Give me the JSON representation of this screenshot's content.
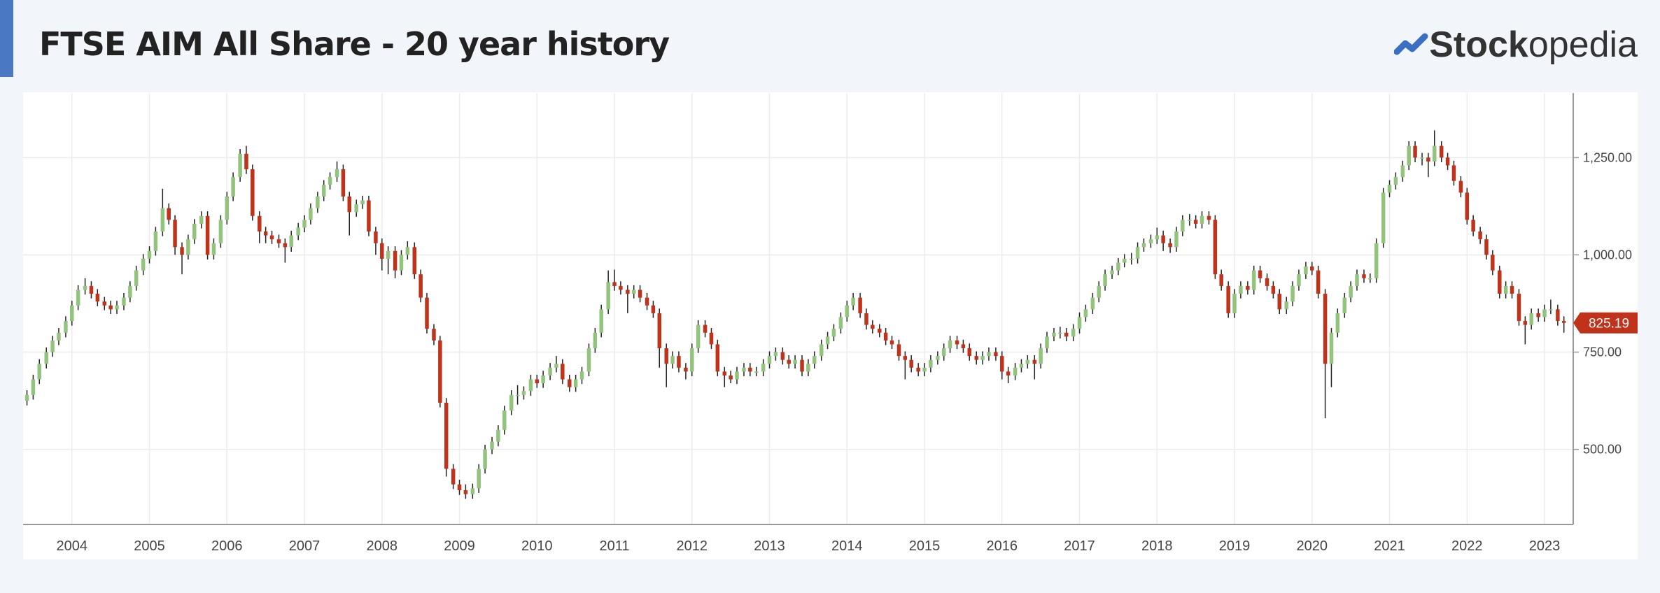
{
  "header": {
    "title": "FTSE AIM All Share - 20 year history",
    "brand_bold": "Stock",
    "brand_light": "opedia"
  },
  "chart_data": {
    "type": "candlestick",
    "up_color": "#93c47d",
    "down_color": "#c0321a",
    "grid": true,
    "xlim": [
      2003.37,
      2023.37
    ],
    "ylim": [
      307,
      1416
    ],
    "xticks": [
      2004,
      2005,
      2006,
      2007,
      2008,
      2009,
      2010,
      2011,
      2012,
      2013,
      2014,
      2015,
      2016,
      2017,
      2018,
      2019,
      2020,
      2021,
      2022,
      2023
    ],
    "yticks": [
      {
        "value": 500,
        "label": "500.00"
      },
      {
        "value": 750,
        "label": "750.00"
      },
      {
        "value": 1000,
        "label": "1,000.00"
      },
      {
        "value": 1250,
        "label": "1,250.00"
      }
    ],
    "x": [
      2003.42,
      2003.5,
      2003.58,
      2003.67,
      2003.75,
      2003.83,
      2003.92,
      2004.0,
      2004.08,
      2004.17,
      2004.25,
      2004.33,
      2004.42,
      2004.5,
      2004.58,
      2004.67,
      2004.75,
      2004.83,
      2004.92,
      2005.0,
      2005.08,
      2005.17,
      2005.25,
      2005.33,
      2005.42,
      2005.5,
      2005.58,
      2005.67,
      2005.75,
      2005.83,
      2005.92,
      2006.0,
      2006.08,
      2006.17,
      2006.25,
      2006.33,
      2006.42,
      2006.5,
      2006.58,
      2006.67,
      2006.75,
      2006.83,
      2006.92,
      2007.0,
      2007.08,
      2007.17,
      2007.25,
      2007.33,
      2007.42,
      2007.5,
      2007.58,
      2007.67,
      2007.75,
      2007.83,
      2007.92,
      2008.0,
      2008.08,
      2008.17,
      2008.25,
      2008.33,
      2008.42,
      2008.5,
      2008.58,
      2008.67,
      2008.75,
      2008.83,
      2008.92,
      2009.0,
      2009.08,
      2009.17,
      2009.25,
      2009.33,
      2009.42,
      2009.5,
      2009.58,
      2009.67,
      2009.75,
      2009.83,
      2009.92,
      2010.0,
      2010.08,
      2010.17,
      2010.25,
      2010.33,
      2010.42,
      2010.5,
      2010.58,
      2010.67,
      2010.75,
      2010.83,
      2010.92,
      2011.0,
      2011.08,
      2011.17,
      2011.25,
      2011.33,
      2011.42,
      2011.5,
      2011.58,
      2011.67,
      2011.75,
      2011.83,
      2011.92,
      2012.0,
      2012.08,
      2012.17,
      2012.25,
      2012.33,
      2012.42,
      2012.5,
      2012.58,
      2012.67,
      2012.75,
      2012.83,
      2012.92,
      2013.0,
      2013.08,
      2013.17,
      2013.25,
      2013.33,
      2013.42,
      2013.5,
      2013.58,
      2013.67,
      2013.75,
      2013.83,
      2013.92,
      2014.0,
      2014.08,
      2014.17,
      2014.25,
      2014.33,
      2014.42,
      2014.5,
      2014.58,
      2014.67,
      2014.75,
      2014.83,
      2014.92,
      2015.0,
      2015.08,
      2015.17,
      2015.25,
      2015.33,
      2015.42,
      2015.5,
      2015.58,
      2015.67,
      2015.75,
      2015.83,
      2015.92,
      2016.0,
      2016.08,
      2016.17,
      2016.25,
      2016.33,
      2016.42,
      2016.5,
      2016.58,
      2016.67,
      2016.75,
      2016.83,
      2016.92,
      2017.0,
      2017.08,
      2017.17,
      2017.25,
      2017.33,
      2017.42,
      2017.5,
      2017.58,
      2017.67,
      2017.75,
      2017.83,
      2017.92,
      2018.0,
      2018.08,
      2018.17,
      2018.25,
      2018.33,
      2018.42,
      2018.5,
      2018.58,
      2018.67,
      2018.75,
      2018.83,
      2018.92,
      2019.0,
      2019.08,
      2019.17,
      2019.25,
      2019.33,
      2019.42,
      2019.5,
      2019.58,
      2019.67,
      2019.75,
      2019.83,
      2019.92,
      2020.0,
      2020.08,
      2020.17,
      2020.25,
      2020.33,
      2020.42,
      2020.5,
      2020.58,
      2020.67,
      2020.75,
      2020.83,
      2020.92,
      2021.0,
      2021.08,
      2021.17,
      2021.25,
      2021.33,
      2021.42,
      2021.5,
      2021.58,
      2021.67,
      2021.75,
      2021.83,
      2021.92,
      2022.0,
      2022.08,
      2022.17,
      2022.25,
      2022.33,
      2022.42,
      2022.5,
      2022.58,
      2022.67,
      2022.75,
      2022.83,
      2022.92,
      2023.0,
      2023.08,
      2023.17,
      2023.25
    ],
    "open": [
      625,
      640,
      680,
      720,
      750,
      780,
      800,
      830,
      870,
      910,
      920,
      900,
      880,
      870,
      860,
      870,
      890,
      920,
      960,
      990,
      1010,
      1060,
      1120,
      1090,
      1020,
      1000,
      1040,
      1080,
      1100,
      1000,
      1030,
      1090,
      1150,
      1200,
      1260,
      1220,
      1100,
      1060,
      1050,
      1040,
      1030,
      1020,
      1050,
      1070,
      1090,
      1120,
      1150,
      1180,
      1200,
      1220,
      1150,
      1110,
      1130,
      1140,
      1060,
      1030,
      990,
      1010,
      960,
      1000,
      1020,
      950,
      890,
      810,
      780,
      620,
      450,
      410,
      395,
      385,
      400,
      450,
      500,
      520,
      550,
      600,
      640,
      640,
      650,
      680,
      670,
      690,
      710,
      720,
      680,
      660,
      680,
      700,
      760,
      800,
      860,
      930,
      920,
      910,
      900,
      910,
      890,
      870,
      850,
      760,
      720,
      740,
      710,
      700,
      760,
      820,
      800,
      770,
      700,
      690,
      680,
      700,
      710,
      700,
      700,
      720,
      740,
      750,
      730,
      720,
      730,
      700,
      720,
      740,
      770,
      790,
      810,
      840,
      870,
      890,
      850,
      820,
      810,
      800,
      780,
      770,
      740,
      730,
      710,
      700,
      710,
      730,
      740,
      760,
      780,
      770,
      760,
      740,
      730,
      740,
      750,
      740,
      700,
      690,
      710,
      720,
      730,
      720,
      760,
      790,
      800,
      800,
      790,
      810,
      840,
      860,
      890,
      920,
      950,
      960,
      980,
      990,
      990,
      1020,
      1030,
      1040,
      1050,
      1030,
      1020,
      1060,
      1090,
      1090,
      1080,
      1100,
      1090,
      950,
      920,
      850,
      900,
      920,
      910,
      960,
      940,
      920,
      900,
      860,
      880,
      920,
      950,
      970,
      960,
      900,
      720,
      800,
      850,
      890,
      920,
      950,
      940,
      940,
      1030,
      1160,
      1180,
      1200,
      1230,
      1280,
      1250,
      1250,
      1240,
      1280,
      1250,
      1230,
      1190,
      1160,
      1090,
      1060,
      1040,
      1000,
      960,
      900,
      920,
      900,
      830,
      820,
      850,
      840,
      860,
      860,
      830
    ],
    "high": [
      652,
      692,
      732,
      762,
      792,
      812,
      842,
      882,
      922,
      940,
      932,
      912,
      892,
      882,
      882,
      902,
      932,
      972,
      1002,
      1022,
      1072,
      1170,
      1132,
      1102,
      1032,
      1052,
      1092,
      1112,
      1112,
      1042,
      1102,
      1162,
      1212,
      1272,
      1280,
      1232,
      1112,
      1072,
      1062,
      1052,
      1042,
      1062,
      1082,
      1102,
      1132,
      1162,
      1192,
      1212,
      1240,
      1232,
      1162,
      1142,
      1152,
      1152,
      1072,
      1042,
      1022,
      1022,
      1012,
      1035,
      1032,
      962,
      902,
      822,
      792,
      632,
      462,
      422,
      410,
      412,
      462,
      512,
      532,
      562,
      612,
      652,
      665,
      662,
      692,
      692,
      702,
      722,
      740,
      732,
      692,
      692,
      712,
      772,
      812,
      872,
      960,
      962,
      932,
      922,
      922,
      922,
      902,
      882,
      862,
      772,
      752,
      752,
      722,
      772,
      832,
      832,
      812,
      782,
      712,
      702,
      712,
      722,
      722,
      712,
      732,
      752,
      762,
      762,
      742,
      742,
      742,
      732,
      752,
      782,
      802,
      822,
      852,
      882,
      902,
      902,
      862,
      832,
      822,
      812,
      792,
      782,
      752,
      742,
      722,
      722,
      742,
      752,
      772,
      792,
      792,
      782,
      772,
      752,
      752,
      762,
      762,
      752,
      712,
      722,
      732,
      742,
      742,
      772,
      802,
      812,
      815,
      812,
      822,
      852,
      872,
      902,
      932,
      962,
      972,
      992,
      1002,
      1005,
      1032,
      1042,
      1052,
      1070,
      1062,
      1042,
      1072,
      1102,
      1105,
      1102,
      1112,
      1112,
      1102,
      962,
      932,
      912,
      932,
      932,
      972,
      972,
      952,
      932,
      912,
      892,
      932,
      962,
      982,
      982,
      972,
      912,
      812,
      862,
      902,
      932,
      962,
      962,
      952,
      1042,
      1172,
      1192,
      1212,
      1242,
      1292,
      1292,
      1262,
      1262,
      1320,
      1292,
      1262,
      1242,
      1202,
      1172,
      1102,
      1072,
      1052,
      1012,
      972,
      932,
      932,
      912,
      842,
      862,
      862,
      872,
      885,
      872,
      842
    ],
    "low": [
      613,
      628,
      668,
      708,
      738,
      768,
      788,
      818,
      858,
      898,
      888,
      868,
      858,
      848,
      848,
      858,
      878,
      908,
      948,
      978,
      998,
      1048,
      1078,
      1000,
      950,
      988,
      1028,
      1068,
      988,
      988,
      1018,
      1078,
      1138,
      1188,
      1208,
      1088,
      1030,
      1030,
      1028,
      1018,
      980,
      1008,
      1038,
      1058,
      1078,
      1108,
      1138,
      1168,
      1188,
      1138,
      1050,
      1098,
      1118,
      1048,
      1000,
      960,
      950,
      940,
      948,
      988,
      938,
      878,
      798,
      768,
      608,
      430,
      398,
      383,
      373,
      373,
      388,
      438,
      488,
      508,
      538,
      588,
      615,
      628,
      638,
      658,
      658,
      678,
      698,
      668,
      648,
      648,
      668,
      688,
      748,
      788,
      848,
      908,
      898,
      850,
      888,
      878,
      858,
      838,
      710,
      660,
      708,
      698,
      680,
      688,
      748,
      788,
      758,
      688,
      660,
      670,
      668,
      688,
      688,
      688,
      688,
      708,
      728,
      718,
      708,
      708,
      688,
      688,
      708,
      728,
      758,
      778,
      798,
      828,
      858,
      838,
      808,
      798,
      788,
      768,
      758,
      728,
      680,
      698,
      688,
      688,
      698,
      718,
      728,
      748,
      758,
      748,
      728,
      718,
      718,
      728,
      728,
      680,
      670,
      678,
      698,
      708,
      680,
      708,
      748,
      778,
      785,
      778,
      778,
      798,
      828,
      848,
      878,
      908,
      938,
      948,
      968,
      975,
      978,
      1008,
      1018,
      1028,
      1010,
      1005,
      1008,
      1048,
      1075,
      1068,
      1068,
      1078,
      938,
      908,
      838,
      838,
      888,
      898,
      898,
      928,
      908,
      888,
      848,
      848,
      868,
      908,
      938,
      948,
      888,
      580,
      660,
      788,
      838,
      878,
      908,
      928,
      928,
      928,
      1018,
      1148,
      1168,
      1188,
      1218,
      1238,
      1230,
      1200,
      1228,
      1238,
      1218,
      1178,
      1148,
      1078,
      1048,
      1028,
      988,
      948,
      888,
      888,
      888,
      818,
      770,
      808,
      828,
      828,
      848,
      818,
      800
    ],
    "close": [
      640,
      680,
      720,
      750,
      780,
      800,
      830,
      870,
      910,
      920,
      900,
      880,
      870,
      860,
      870,
      890,
      920,
      960,
      990,
      1010,
      1060,
      1120,
      1090,
      1020,
      1000,
      1040,
      1080,
      1100,
      1000,
      1030,
      1090,
      1150,
      1200,
      1260,
      1220,
      1100,
      1060,
      1050,
      1040,
      1030,
      1020,
      1050,
      1070,
      1090,
      1120,
      1150,
      1180,
      1200,
      1220,
      1150,
      1110,
      1130,
      1140,
      1060,
      1030,
      990,
      1010,
      960,
      1000,
      1020,
      950,
      890,
      810,
      780,
      620,
      450,
      410,
      395,
      385,
      400,
      450,
      500,
      520,
      550,
      600,
      640,
      640,
      650,
      680,
      670,
      690,
      710,
      720,
      680,
      660,
      680,
      700,
      760,
      800,
      860,
      930,
      920,
      910,
      900,
      910,
      890,
      870,
      850,
      760,
      720,
      740,
      710,
      700,
      760,
      820,
      800,
      770,
      700,
      690,
      680,
      700,
      710,
      700,
      700,
      720,
      740,
      750,
      730,
      720,
      730,
      700,
      720,
      740,
      770,
      790,
      810,
      840,
      870,
      890,
      850,
      820,
      810,
      800,
      780,
      770,
      740,
      730,
      710,
      700,
      710,
      730,
      740,
      760,
      780,
      770,
      760,
      740,
      730,
      740,
      750,
      740,
      700,
      690,
      710,
      720,
      730,
      720,
      760,
      790,
      800,
      800,
      790,
      810,
      840,
      860,
      890,
      920,
      950,
      960,
      980,
      990,
      990,
      1020,
      1030,
      1040,
      1050,
      1030,
      1020,
      1060,
      1090,
      1090,
      1080,
      1100,
      1090,
      950,
      920,
      850,
      900,
      920,
      910,
      960,
      940,
      920,
      900,
      860,
      880,
      920,
      950,
      970,
      960,
      900,
      720,
      800,
      850,
      890,
      920,
      950,
      940,
      940,
      1030,
      1160,
      1180,
      1200,
      1230,
      1280,
      1250,
      1250,
      1240,
      1280,
      1250,
      1230,
      1190,
      1160,
      1090,
      1060,
      1040,
      1000,
      960,
      900,
      920,
      900,
      830,
      820,
      850,
      840,
      860,
      860,
      830,
      825.19
    ]
  }
}
